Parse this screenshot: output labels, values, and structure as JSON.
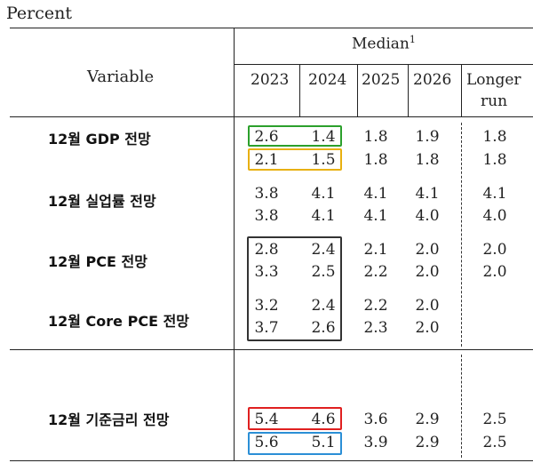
{
  "unit_label": "Percent",
  "header": {
    "variable": "Variable",
    "median": "Median",
    "median_sup": "1",
    "years": [
      "2023",
      "2024",
      "2025",
      "2026"
    ],
    "longer_run_1": "Longer",
    "longer_run_2": "run"
  },
  "rows": [
    {
      "label": "12월 GDP 전망",
      "values": [
        [
          "2.6",
          "1.4",
          "1.8",
          "1.9",
          "1.8"
        ],
        [
          "2.1",
          "1.5",
          "1.8",
          "1.8",
          "1.8"
        ]
      ]
    },
    {
      "label": "12월 실업률 전망",
      "values": [
        [
          "3.8",
          "4.1",
          "4.1",
          "4.1",
          "4.1"
        ],
        [
          "3.8",
          "4.1",
          "4.1",
          "4.0",
          "4.0"
        ]
      ]
    },
    {
      "label": "12월 PCE 전망",
      "values": [
        [
          "2.8",
          "2.4",
          "2.1",
          "2.0",
          "2.0"
        ],
        [
          "3.3",
          "2.5",
          "2.2",
          "2.0",
          "2.0"
        ]
      ]
    },
    {
      "label": "12월 Core PCE 전망",
      "values": [
        [
          "3.2",
          "2.4",
          "2.2",
          "2.0",
          ""
        ],
        [
          "3.7",
          "2.6",
          "2.3",
          "2.0",
          ""
        ]
      ]
    },
    {
      "label": "12월 기준금리 전망",
      "values": [
        [
          "5.4",
          "4.6",
          "3.6",
          "2.9",
          "2.5"
        ],
        [
          "5.6",
          "5.1",
          "3.9",
          "2.9",
          "2.5"
        ]
      ]
    }
  ],
  "highlight_colors": {
    "green": "#2ca02c",
    "yellow": "#e8b010",
    "dark": "#333333",
    "red": "#e02020",
    "blue": "#2b8fd6"
  }
}
